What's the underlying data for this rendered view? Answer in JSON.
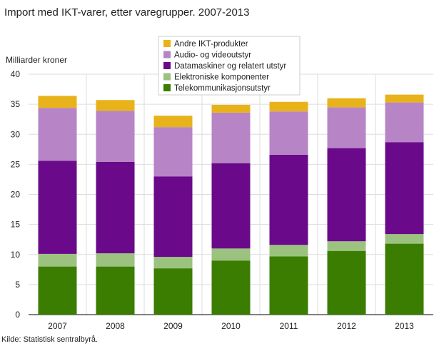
{
  "chart_data": {
    "type": "stacked-bar",
    "title": "Import med IKT-varer, etter varegrupper. 2007-2013",
    "y_label": "Milliarder  kroner",
    "source": "Kilde: Statistisk sentralbyrå.",
    "categories": [
      "2007",
      "2008",
      "2009",
      "2010",
      "2011",
      "2012",
      "2013"
    ],
    "series": [
      {
        "name": "Telekommunikasjonsutstyr",
        "color": "#3a7d00",
        "values": [
          8.0,
          8.0,
          7.7,
          9.0,
          9.7,
          10.6,
          11.8
        ]
      },
      {
        "name": "Elektroniske komponenter",
        "color": "#9cc27f",
        "values": [
          2.1,
          2.2,
          1.9,
          2.0,
          1.9,
          1.6,
          1.6
        ]
      },
      {
        "name": "Datamaskiner og relatert utstyr",
        "color": "#6a0a8a",
        "values": [
          15.5,
          15.2,
          13.4,
          14.2,
          15.0,
          15.5,
          15.3
        ]
      },
      {
        "name": "Audio- og videoutstyr",
        "color": "#b784c6",
        "values": [
          8.8,
          8.5,
          8.2,
          8.4,
          7.2,
          6.8,
          6.6
        ]
      },
      {
        "name": "Andre IKT-produkter",
        "color": "#e8b31a",
        "values": [
          2.0,
          1.8,
          1.9,
          1.3,
          1.6,
          1.5,
          1.3
        ]
      }
    ],
    "ylim": [
      0,
      40
    ],
    "yticks": [
      0,
      5,
      10,
      15,
      20,
      25,
      30,
      35,
      40
    ],
    "grid": true
  }
}
